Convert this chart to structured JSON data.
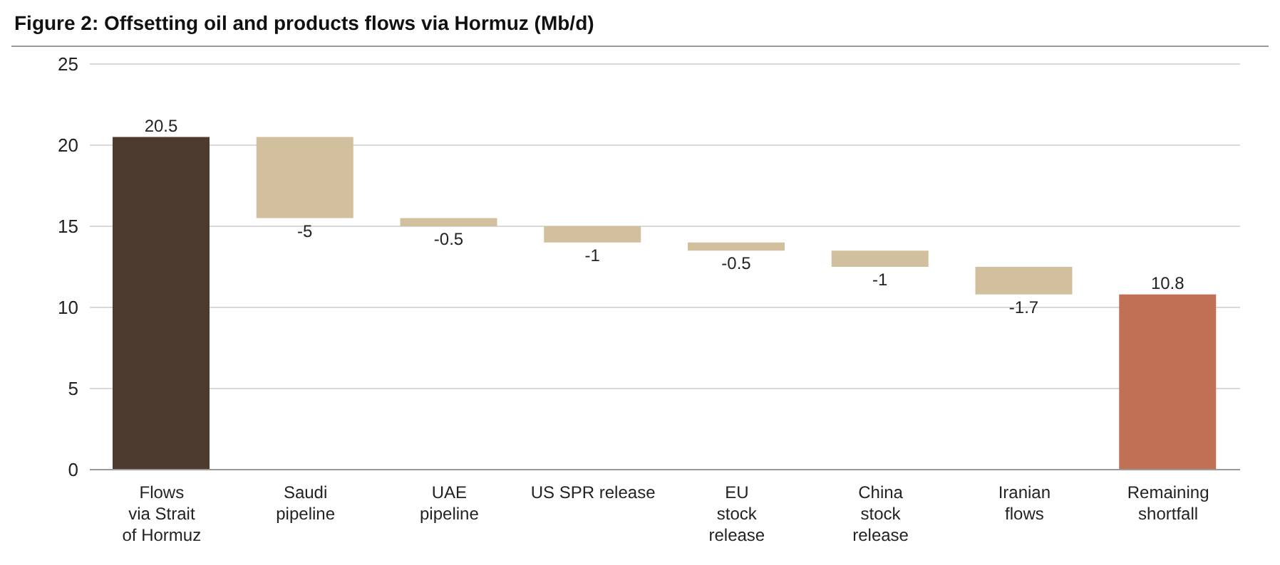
{
  "chart_data": {
    "type": "bar",
    "title": "Figure 2: Offsetting oil and products flows via Hormuz (Mb/d)",
    "categories": [
      "Flows\nvia Strait\nof Hormuz",
      "Saudi\npipeline",
      "UAE\npipeline",
      "US SPR release",
      "EU\nstock\nrelease",
      "China\nstock\nrelease",
      "Iranian\nflows",
      "Remaining\nshortfall"
    ],
    "values": [
      20.5,
      -5,
      -0.5,
      -1,
      -0.5,
      -1,
      -1.7,
      10.8
    ],
    "base": [
      0,
      20.5,
      15.5,
      15,
      14,
      13.5,
      12.5,
      0
    ],
    "colors": [
      "#4e3b30",
      "#d1bf9d",
      "#d1bf9d",
      "#d1bf9d",
      "#d1bf9d",
      "#d1bf9d",
      "#d1bf9d",
      "#c07055"
    ],
    "ylim": [
      0,
      25
    ],
    "yticks": [
      0,
      5,
      10,
      15,
      20,
      25
    ],
    "grid": "y",
    "legend": false,
    "data_labels": true
  }
}
